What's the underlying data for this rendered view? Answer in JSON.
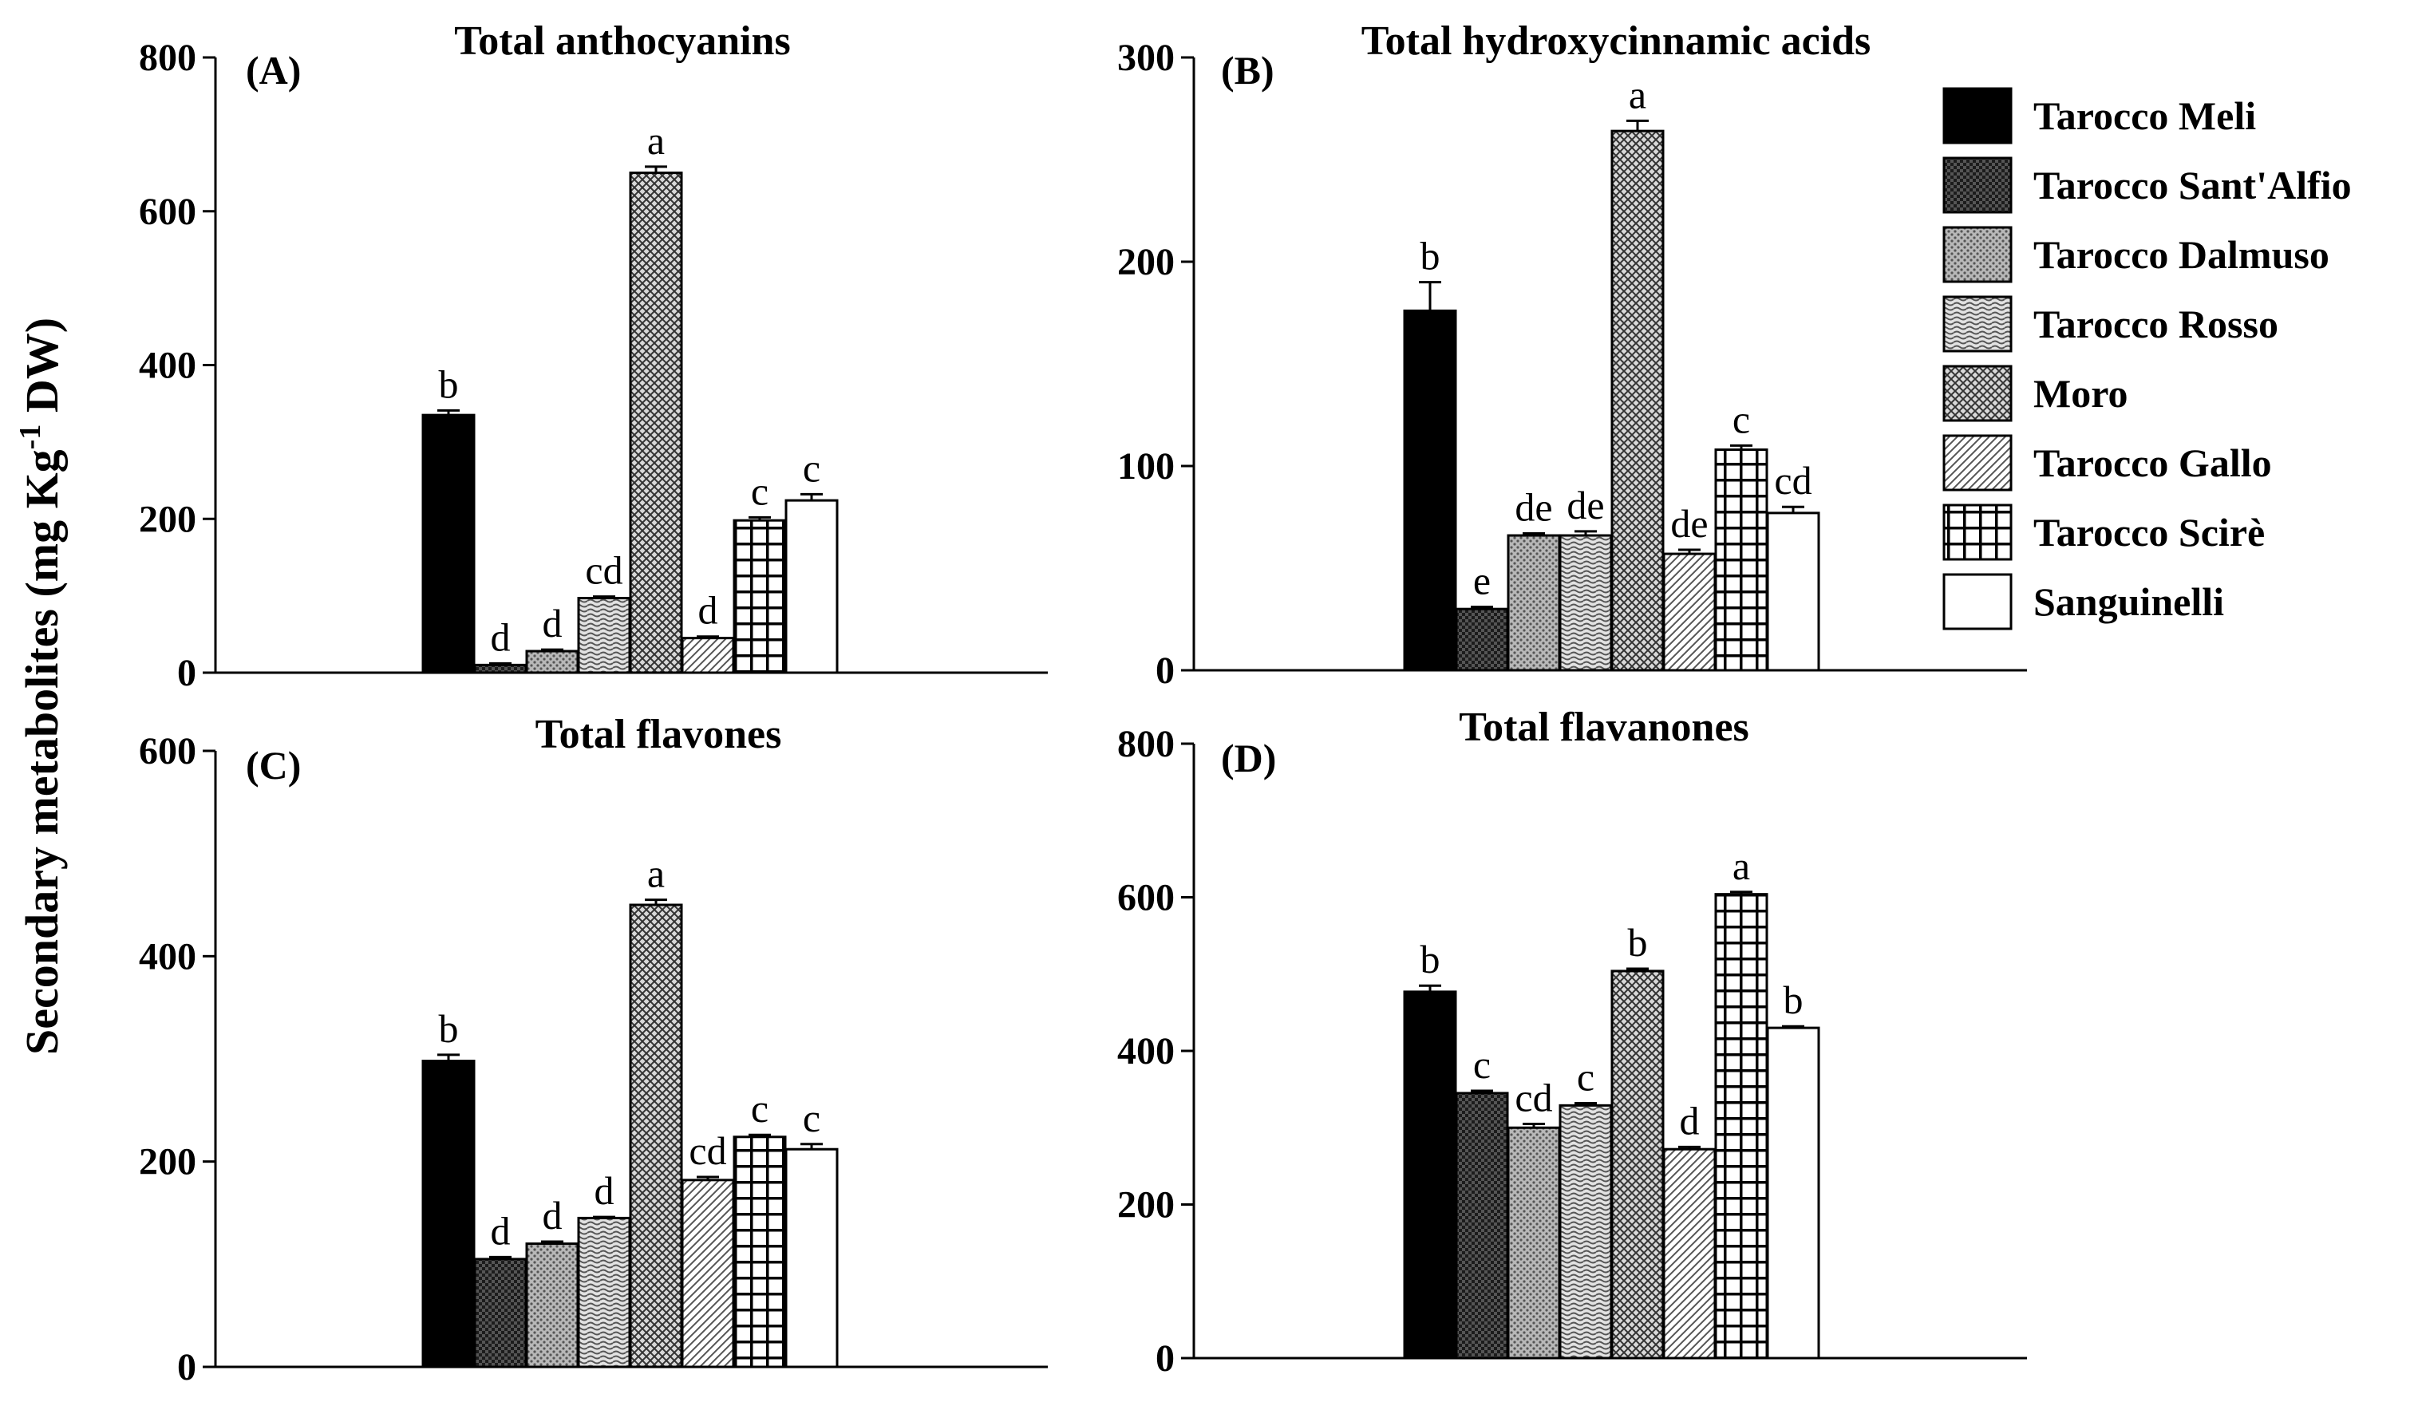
{
  "figure": {
    "y_axis_label": {
      "main": "Secondary metabolites (mg Kg",
      "superscript": "-1",
      "tail": " DW)"
    }
  },
  "legend": [
    {
      "name": "Tarocco Meli",
      "pattern": "solid-black"
    },
    {
      "name": "Tarocco Sant'Alfio",
      "pattern": "dark-dots"
    },
    {
      "name": "Tarocco Dalmuso",
      "pattern": "gray-dots"
    },
    {
      "name": "Tarocco Rosso",
      "pattern": "wave"
    },
    {
      "name": "Moro",
      "pattern": "crosshatch"
    },
    {
      "name": "Tarocco Gallo",
      "pattern": "diagonal"
    },
    {
      "name": "Tarocco Scirè",
      "pattern": "grid"
    },
    {
      "name": "Sanguinelli",
      "pattern": "white"
    }
  ],
  "colors": {
    "black": "#000000",
    "dark_gray": "#3a3a3a",
    "mid_gray": "#9a9a9a",
    "light_gray": "#d6d6d6",
    "white": "#ffffff"
  },
  "chart_data": [
    {
      "type": "bar",
      "panel": "(A)",
      "title": "Total anthocyanins",
      "categories": [
        "Tarocco Meli",
        "Tarocco Sant'Alfio",
        "Tarocco Dalmuso",
        "Tarocco Rosso",
        "Moro",
        "Tarocco Gallo",
        "Tarocco Scirè",
        "Sanguinelli"
      ],
      "values": [
        335,
        10,
        28,
        97,
        650,
        45,
        198,
        224
      ],
      "errors": [
        6,
        2,
        2,
        2,
        8,
        2,
        4,
        8
      ],
      "letters": [
        "b",
        "d",
        "d",
        "cd",
        "a",
        "d",
        "c",
        "c"
      ],
      "ylim": [
        0,
        800
      ],
      "yticks": [
        0,
        200,
        400,
        600,
        800
      ]
    },
    {
      "type": "bar",
      "panel": "(B)",
      "title": "Total hydroxycinnamic acids",
      "categories": [
        "Tarocco Meli",
        "Tarocco Sant'Alfio",
        "Tarocco Dalmuso",
        "Tarocco Rosso",
        "Moro",
        "Tarocco Gallo",
        "Tarocco Scirè",
        "Sanguinelli"
      ],
      "values": [
        176,
        30,
        66,
        66,
        264,
        57,
        108,
        77
      ],
      "errors": [
        14,
        1,
        1,
        2,
        5,
        2,
        2,
        3
      ],
      "letters": [
        "b",
        "e",
        "de",
        "de",
        "a",
        "de",
        "c",
        "cd"
      ],
      "ylim": [
        0,
        300
      ],
      "yticks": [
        0,
        100,
        200,
        300
      ]
    },
    {
      "type": "bar",
      "panel": "(C)",
      "title": "Total flavones",
      "categories": [
        "Tarocco Meli",
        "Tarocco Sant'Alfio",
        "Tarocco Dalmuso",
        "Tarocco Rosso",
        "Moro",
        "Tarocco Gallo",
        "Tarocco Scirè",
        "Sanguinelli"
      ],
      "values": [
        298,
        105,
        120,
        145,
        450,
        182,
        224,
        212
      ],
      "errors": [
        6,
        2,
        2,
        1,
        5,
        3,
        2,
        5
      ],
      "letters": [
        "b",
        "d",
        "d",
        "d",
        "a",
        "cd",
        "c",
        "c"
      ],
      "ylim": [
        0,
        600
      ],
      "yticks": [
        0,
        200,
        400,
        600
      ]
    },
    {
      "type": "bar",
      "panel": "(D)",
      "title": "Total flavanones",
      "categories": [
        "Tarocco Meli",
        "Tarocco Sant'Alfio",
        "Tarocco Dalmuso",
        "Tarocco Rosso",
        "Moro",
        "Tarocco Gallo",
        "Tarocco Scirè",
        "Sanguinelli"
      ],
      "values": [
        477,
        345,
        300,
        329,
        504,
        272,
        604,
        430
      ],
      "errors": [
        8,
        3,
        5,
        3,
        3,
        3,
        3,
        2
      ],
      "letters": [
        "b",
        "c",
        "cd",
        "c",
        "b",
        "d",
        "a",
        "b"
      ],
      "ylim": [
        0,
        800
      ],
      "yticks": [
        0,
        200,
        400,
        600,
        800
      ]
    }
  ]
}
